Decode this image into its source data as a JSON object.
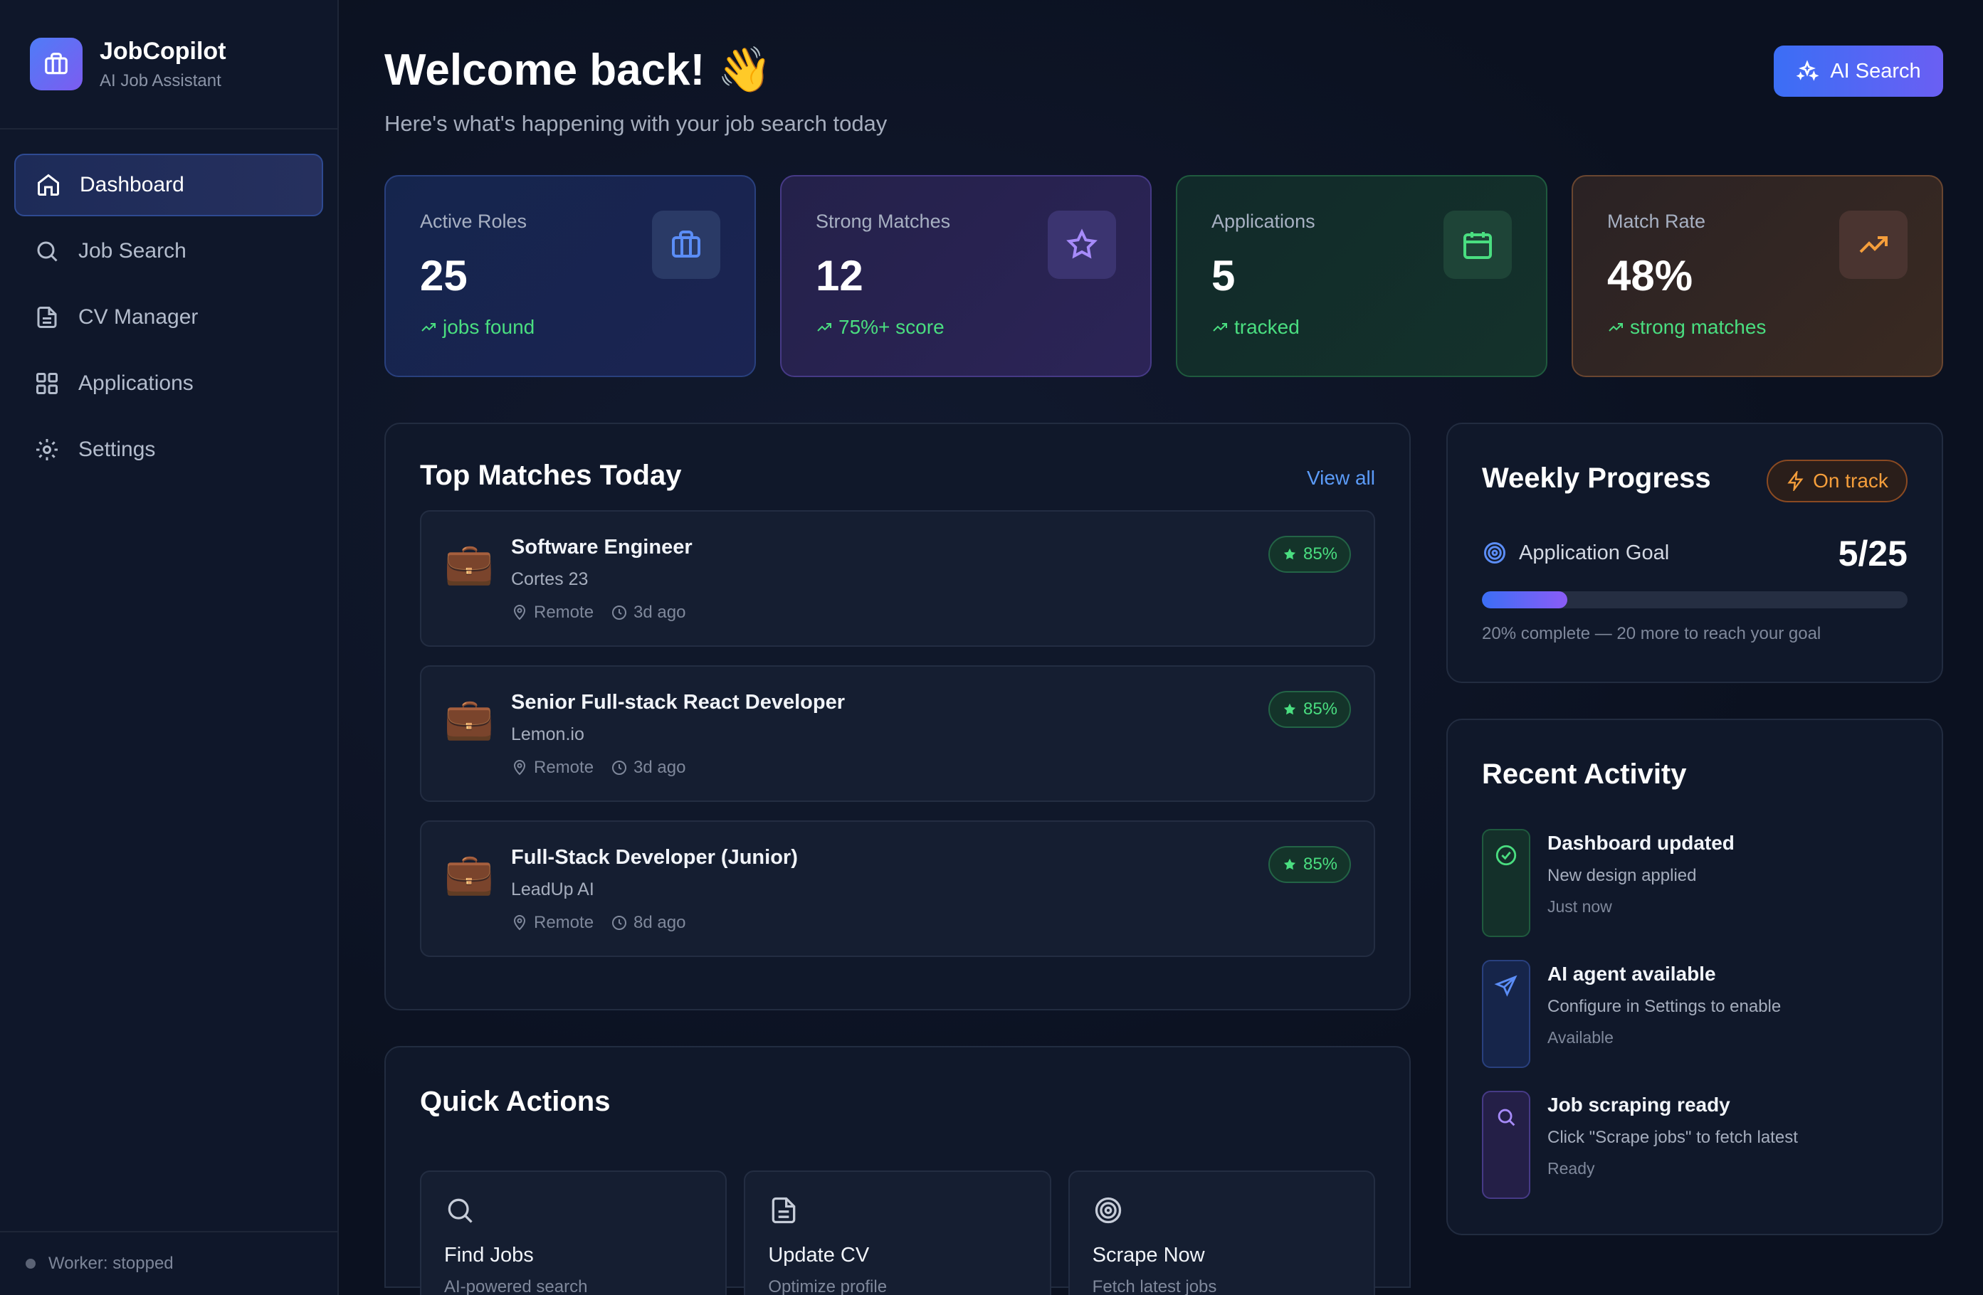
{
  "brand": {
    "name": "JobCopilot",
    "subtitle": "AI Job Assistant"
  },
  "nav": [
    {
      "label": "Dashboard",
      "icon": "home-icon",
      "active": true
    },
    {
      "label": "Job Search",
      "icon": "search-icon"
    },
    {
      "label": "CV Manager",
      "icon": "document-icon"
    },
    {
      "label": "Applications",
      "icon": "grid-icon"
    },
    {
      "label": "Settings",
      "icon": "gear-icon"
    }
  ],
  "worker": {
    "status": "Worker: stopped"
  },
  "header": {
    "title": "Welcome back! 👋",
    "subtitle": "Here's what's happening with your job search today",
    "ai_button": "AI Search"
  },
  "stats": [
    {
      "label": "Active Roles",
      "value": "25",
      "trend": "jobs found",
      "icon": "briefcase-icon",
      "color": "#5b8df6"
    },
    {
      "label": "Strong Matches",
      "value": "12",
      "trend": "75%+ score",
      "icon": "star-icon",
      "color": "#a78bfa"
    },
    {
      "label": "Applications",
      "value": "5",
      "trend": "tracked",
      "icon": "calendar-icon",
      "color": "#4ade80"
    },
    {
      "label": "Match Rate",
      "value": "48%",
      "trend": "strong matches",
      "icon": "trending-up-icon",
      "color": "#f59e3b"
    }
  ],
  "matches": {
    "title": "Top Matches Today",
    "view_all": "View all",
    "items": [
      {
        "title": "Software Engineer",
        "company": "Cortes 23",
        "location": "Remote",
        "posted": "3d ago",
        "score": "85%"
      },
      {
        "title": "Senior Full-stack React Developer",
        "company": "Lemon.io",
        "location": "Remote",
        "posted": "3d ago",
        "score": "85%"
      },
      {
        "title": "Full-Stack Developer (Junior)",
        "company": "LeadUp AI",
        "location": "Remote",
        "posted": "8d ago",
        "score": "85%"
      }
    ]
  },
  "quick_actions": {
    "title": "Quick Actions",
    "items": [
      {
        "title": "Find Jobs",
        "subtitle": "AI-powered search",
        "icon": "search-icon"
      },
      {
        "title": "Update CV",
        "subtitle": "Optimize profile",
        "icon": "document-icon"
      },
      {
        "title": "Scrape Now",
        "subtitle": "Fetch latest jobs",
        "icon": "target-icon"
      }
    ]
  },
  "weekly": {
    "title": "Weekly Progress",
    "badge": "On track",
    "goal_label": "Application Goal",
    "goal_value": "5/25",
    "progress_fraction": 0.2,
    "note": "20% complete — 20 more to reach your goal"
  },
  "activity": {
    "title": "Recent Activity",
    "items": [
      {
        "title": "Dashboard updated",
        "subtitle": "New design applied",
        "time": "Just now",
        "icon": "check-circle-icon"
      },
      {
        "title": "AI agent available",
        "subtitle": "Configure in Settings to enable",
        "time": "Available",
        "icon": "send-icon"
      },
      {
        "title": "Job scraping ready",
        "subtitle": "Click \"Scrape jobs\" to fetch latest",
        "time": "Ready",
        "icon": "search-icon"
      }
    ]
  }
}
